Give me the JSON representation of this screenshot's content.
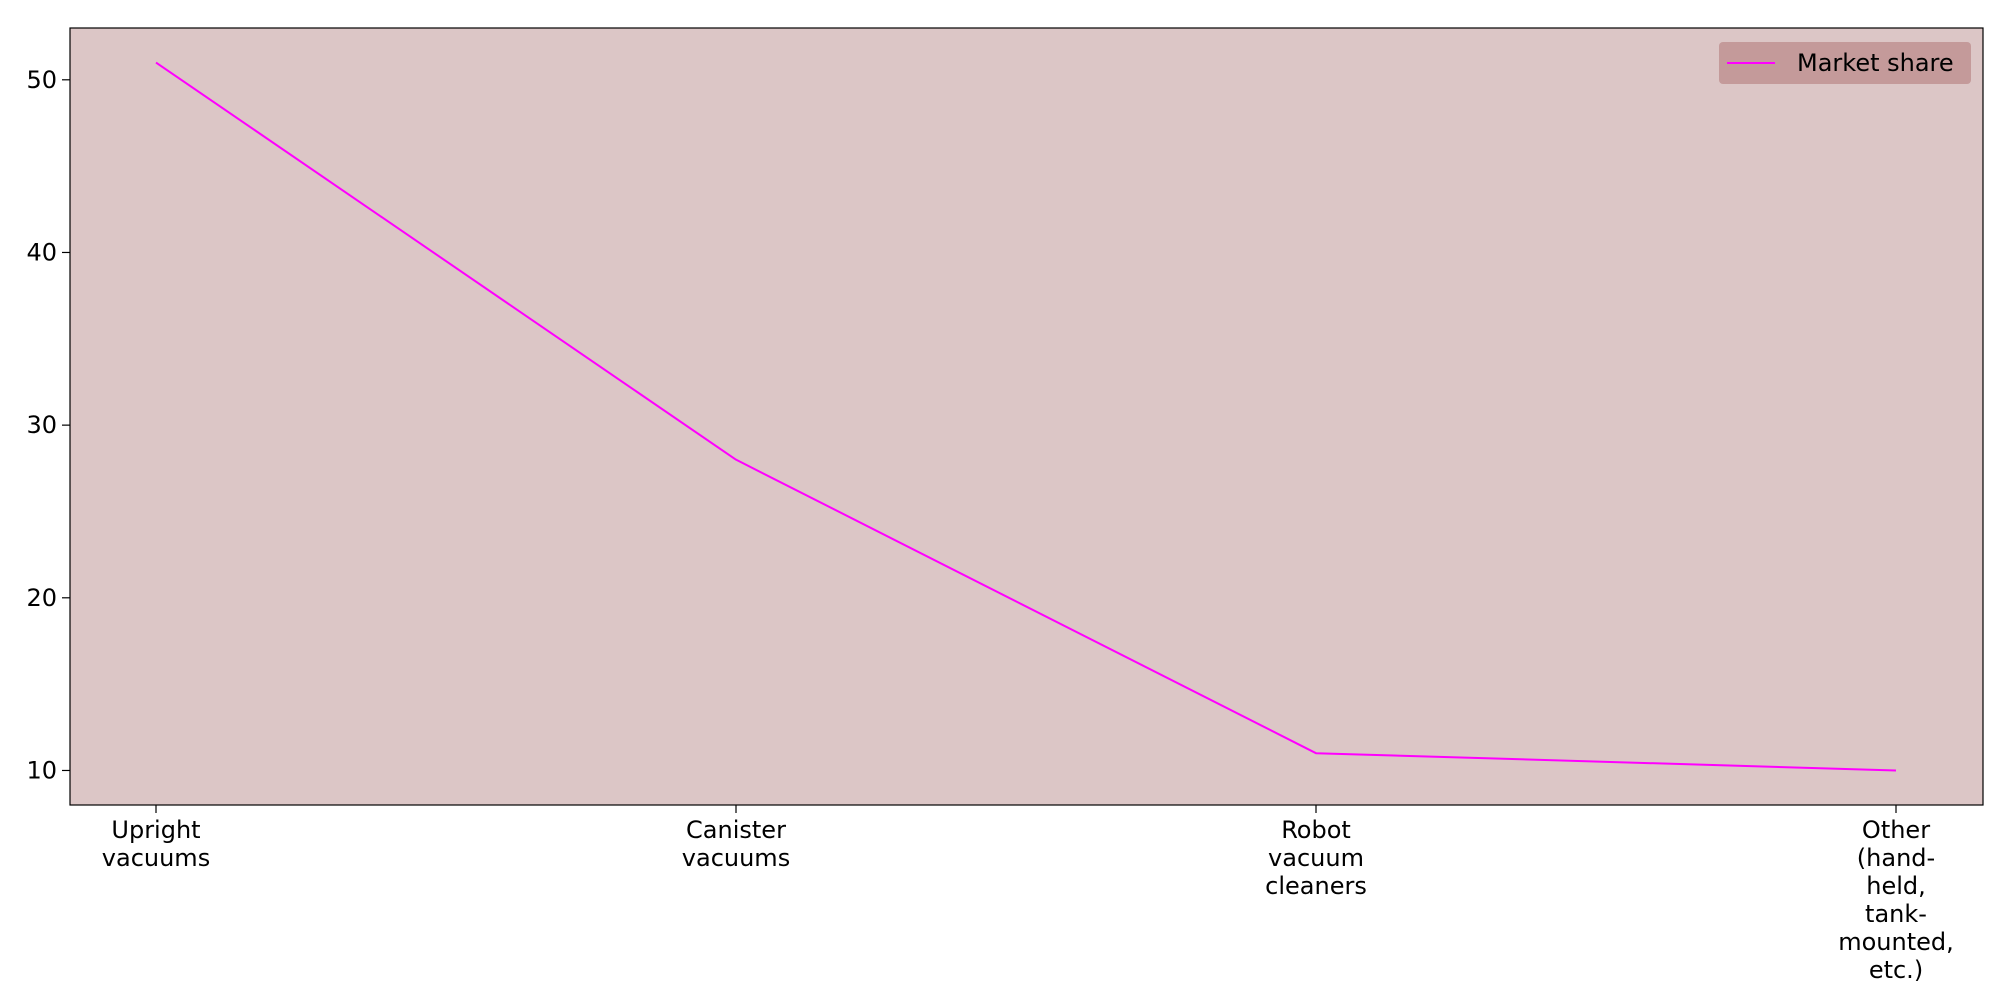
{
  "chart_data": {
    "type": "line",
    "title": "",
    "xlabel": "",
    "ylabel": "",
    "categories": [
      [
        "Upright",
        "vacuums"
      ],
      [
        "Canister",
        "vacuums"
      ],
      [
        "Robot",
        "vacuum",
        "cleaners"
      ],
      [
        "Other",
        "(hand-",
        "held,",
        "tank-",
        "mounted,",
        "etc.)"
      ]
    ],
    "series": [
      {
        "name": "Market share",
        "values": [
          51,
          28,
          11,
          10
        ],
        "color": "#ff00ff"
      }
    ],
    "ylim": [
      8,
      53
    ],
    "yticks": [
      10,
      20,
      30,
      40,
      50
    ],
    "grid": false,
    "legend": "top-right",
    "plot_background": "#dcc6c6",
    "legend_background": "#c49a9a"
  }
}
